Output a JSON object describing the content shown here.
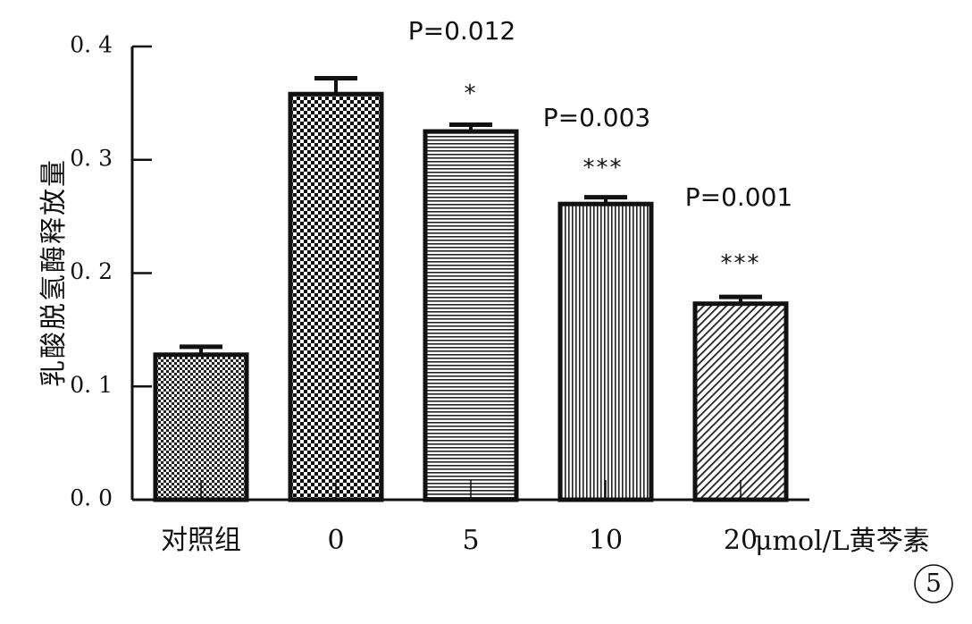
{
  "chart_data": {
    "type": "bar",
    "categories": [
      "对照组",
      "0",
      "5",
      "10",
      "20"
    ],
    "values": [
      0.128,
      0.358,
      0.325,
      0.261,
      0.173
    ],
    "errors": [
      0.007,
      0.014,
      0.006,
      0.006,
      0.006
    ],
    "ylim": [
      0.0,
      0.4
    ],
    "yticks": [
      0.0,
      0.1,
      0.2,
      0.3,
      0.4
    ],
    "ytick_labels": [
      "0. 0",
      "0. 1",
      "0. 2",
      "0. 3",
      "0. 4"
    ],
    "ylabel": "乳酸脱氢酶释放量",
    "xlabel_unit": "μmol/L黄芩素",
    "annotations": [
      {
        "category": "5",
        "p_value": "P=0.012",
        "stars": "*"
      },
      {
        "category": "10",
        "p_value": "P=0.003",
        "stars": "***"
      },
      {
        "category": "20",
        "p_value": "P=0.001",
        "stars": "***"
      }
    ],
    "fill_patterns": [
      "fine-checker",
      "coarse-checker",
      "horizontal-lines",
      "vertical-lines",
      "diagonal-lines"
    ],
    "panel_label": "5",
    "colors": {
      "ink": "#111111",
      "background": "#ffffff"
    }
  }
}
